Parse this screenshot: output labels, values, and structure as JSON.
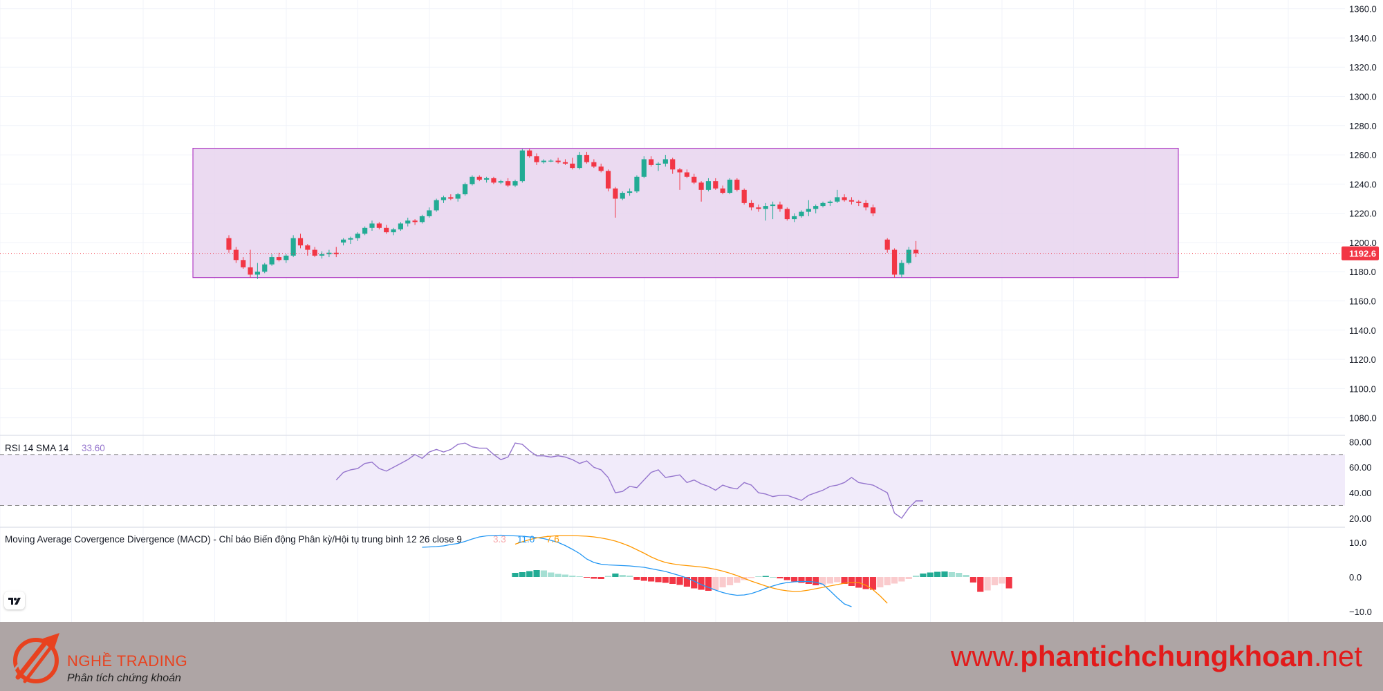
{
  "chart_data": [
    {
      "type": "candlestick",
      "ylim": [
        1068,
        1366
      ],
      "yticks": [
        "1360.0",
        "1340.0",
        "1320.0",
        "1300.0",
        "1280.0",
        "1260.0",
        "1240.0",
        "1220.0",
        "1200.0",
        "1180.0",
        "1160.0",
        "1140.0",
        "1120.0",
        "1100.0",
        "1080.0"
      ],
      "last_price_label": "1192.6",
      "last_price": 1192.6,
      "range_box": {
        "low": 1176,
        "high": 1264.5
      },
      "colors": {
        "up": "#22ab94",
        "down": "#f23645",
        "box_fill": "#e8d3ee",
        "box_stroke": "#b03ec4",
        "price_line": "#f23645"
      },
      "candles": [
        [
          1203,
          1205,
          1193,
          1195
        ],
        [
          1195,
          1197,
          1186,
          1188
        ],
        [
          1188,
          1190,
          1182,
          1183
        ],
        [
          1183,
          1195,
          1176,
          1178
        ],
        [
          1178,
          1186,
          1175,
          1180
        ],
        [
          1180,
          1186,
          1179,
          1185
        ],
        [
          1185,
          1192,
          1184,
          1190
        ],
        [
          1190,
          1193,
          1187,
          1188
        ],
        [
          1188,
          1192,
          1186,
          1191
        ],
        [
          1191,
          1205,
          1190,
          1203
        ],
        [
          1203,
          1206,
          1196,
          1198
        ],
        [
          1198,
          1199,
          1191,
          1195
        ],
        [
          1195,
          1197,
          1190,
          1191
        ],
        [
          1191,
          1194,
          1189,
          1192
        ],
        [
          1192,
          1195,
          1190,
          1193
        ],
        [
          1193,
          1197,
          1190,
          1192
        ],
        [
          1200,
          1203,
          1198,
          1202
        ],
        [
          1202,
          1204,
          1199,
          1203
        ],
        [
          1203,
          1207,
          1201,
          1206
        ],
        [
          1206,
          1211,
          1205,
          1210
        ],
        [
          1210,
          1215,
          1208,
          1213
        ],
        [
          1213,
          1214,
          1209,
          1210
        ],
        [
          1210,
          1212,
          1206,
          1207
        ],
        [
          1207,
          1210,
          1205,
          1209
        ],
        [
          1209,
          1214,
          1208,
          1213
        ],
        [
          1213,
          1217,
          1211,
          1215
        ],
        [
          1215,
          1216,
          1212,
          1214
        ],
        [
          1214,
          1219,
          1213,
          1218
        ],
        [
          1218,
          1224,
          1217,
          1222
        ],
        [
          1222,
          1230,
          1221,
          1229
        ],
        [
          1229,
          1232,
          1227,
          1231
        ],
        [
          1231,
          1233,
          1229,
          1230
        ],
        [
          1230,
          1234,
          1228,
          1233
        ],
        [
          1233,
          1241,
          1232,
          1240
        ],
        [
          1240,
          1246,
          1239,
          1245
        ],
        [
          1245,
          1246,
          1242,
          1243
        ],
        [
          1243,
          1245,
          1241,
          1244
        ],
        [
          1244,
          1245,
          1240,
          1241
        ],
        [
          1241,
          1243,
          1240,
          1242
        ],
        [
          1242,
          1244,
          1238,
          1239
        ],
        [
          1239,
          1243,
          1238,
          1242
        ],
        [
          1242,
          1264,
          1241,
          1263
        ],
        [
          1263,
          1264,
          1258,
          1259
        ],
        [
          1259,
          1261,
          1253,
          1255
        ],
        [
          1255,
          1257,
          1254,
          1256
        ],
        [
          1256,
          1257,
          1255,
          1256
        ],
        [
          1256,
          1258,
          1254,
          1255
        ],
        [
          1255,
          1257,
          1253,
          1254
        ],
        [
          1254,
          1258,
          1250,
          1251
        ],
        [
          1251,
          1262,
          1250,
          1260
        ],
        [
          1260,
          1262,
          1254,
          1255
        ],
        [
          1255,
          1257,
          1251,
          1252
        ],
        [
          1252,
          1254,
          1248,
          1249
        ],
        [
          1249,
          1250,
          1235,
          1237
        ],
        [
          1237,
          1238,
          1217,
          1230
        ],
        [
          1230,
          1235,
          1229,
          1234
        ],
        [
          1234,
          1237,
          1232,
          1235
        ],
        [
          1235,
          1246,
          1234,
          1245
        ],
        [
          1245,
          1259,
          1244,
          1257
        ],
        [
          1257,
          1259,
          1252,
          1253
        ],
        [
          1253,
          1255,
          1249,
          1254
        ],
        [
          1254,
          1260,
          1252,
          1257
        ],
        [
          1257,
          1258,
          1247,
          1250
        ],
        [
          1250,
          1251,
          1236,
          1248
        ],
        [
          1248,
          1250,
          1244,
          1245
        ],
        [
          1245,
          1247,
          1240,
          1241
        ],
        [
          1241,
          1242,
          1228,
          1236
        ],
        [
          1236,
          1244,
          1235,
          1242
        ],
        [
          1242,
          1244,
          1236,
          1237
        ],
        [
          1237,
          1239,
          1233,
          1234
        ],
        [
          1234,
          1244,
          1233,
          1243
        ],
        [
          1243,
          1244,
          1235,
          1236
        ],
        [
          1236,
          1237,
          1226,
          1227
        ],
        [
          1227,
          1229,
          1222,
          1224
        ],
        [
          1224,
          1226,
          1221,
          1223
        ],
        [
          1223,
          1227,
          1215,
          1225
        ],
        [
          1225,
          1228,
          1216,
          1226
        ],
        [
          1226,
          1228,
          1221,
          1223
        ],
        [
          1223,
          1224,
          1215,
          1216
        ],
        [
          1216,
          1220,
          1214,
          1218
        ],
        [
          1218,
          1222,
          1217,
          1221
        ],
        [
          1221,
          1229,
          1218,
          1223
        ],
        [
          1223,
          1226,
          1220,
          1225
        ],
        [
          1225,
          1228,
          1224,
          1227
        ],
        [
          1227,
          1229,
          1225,
          1228
        ],
        [
          1228,
          1236,
          1227,
          1231
        ],
        [
          1231,
          1233,
          1228,
          1229
        ],
        [
          1229,
          1231,
          1226,
          1228
        ],
        [
          1228,
          1229,
          1225,
          1227
        ],
        [
          1227,
          1229,
          1222,
          1224
        ],
        [
          1224,
          1226,
          1218,
          1220
        ],
        null,
        [
          1202,
          1203,
          1193,
          1195
        ],
        [
          1195,
          1196,
          1176,
          1178
        ],
        [
          1178,
          1188,
          1176,
          1186
        ],
        [
          1186,
          1197,
          1185,
          1195
        ],
        [
          1195,
          1201,
          1190,
          1192.6
        ]
      ]
    },
    {
      "type": "line",
      "title": "RSI 14 SMA 14",
      "value_label": "33.60",
      "ylim": [
        14,
        84
      ],
      "yticks": [
        "80.00",
        "60.00",
        "40.00",
        "20.00"
      ],
      "band": [
        30,
        70
      ],
      "colors": {
        "line": "#9575cd",
        "band_fill": "#f1ebfa",
        "band_dash": "#888888"
      },
      "x_start": 15,
      "values": [
        50,
        56,
        58,
        59,
        63,
        64,
        59,
        57,
        60,
        63,
        66,
        70,
        67,
        72,
        74,
        72,
        74,
        78,
        79,
        76,
        75,
        75,
        70,
        66,
        68,
        79,
        78,
        73,
        69,
        69,
        68,
        69,
        68,
        66,
        63,
        65,
        60,
        58,
        52,
        40,
        41,
        45,
        44,
        50,
        56,
        58,
        52,
        53,
        54,
        48,
        50,
        47,
        45,
        42,
        46,
        44,
        43,
        48,
        46,
        40,
        39,
        37,
        38,
        38,
        36,
        34,
        38,
        40,
        42,
        45,
        46,
        48,
        52,
        48,
        47,
        46,
        43,
        40,
        24,
        20,
        28,
        33.6,
        33.6
      ]
    },
    {
      "type": "histogram_lines",
      "title": "Moving Average Covergence Divergence (MACD) - Chỉ báo Biến động Phân kỳ/Hội tụ trung bình 12 26 close 9",
      "values_labels": [
        "3.3",
        "11.0",
        "7.6"
      ],
      "ylim": [
        -12,
        14
      ],
      "yticks": [
        "10.0",
        "0.0",
        "−10.0"
      ],
      "colors": {
        "macd": "#2196f3",
        "signal": "#ff9800",
        "hist_up_strong": "#22ab94",
        "hist_up_weak": "#a5dfd3",
        "hist_down_strong": "#f23645",
        "hist_down_weak": "#facbcd"
      },
      "macd_start": 27,
      "macd": [
        8.6,
        8.7,
        8.8,
        9.0,
        9.4,
        9.7,
        10.3,
        11.0,
        11.6,
        11.9,
        12.0,
        12.1,
        12.0,
        11.9,
        11.8,
        11.6,
        11.4,
        11.1,
        10.6,
        10.0,
        9.1,
        8.0,
        6.8,
        5.2,
        4.2,
        3.7,
        3.5,
        3.4,
        3.3,
        3.2,
        3.0,
        2.8,
        2.4,
        2.0,
        1.6,
        1.0,
        0.4,
        -0.3,
        -1.2,
        -2.2,
        -3.0,
        -3.8,
        -4.5,
        -5.0,
        -5.3,
        -5.2,
        -4.8,
        -4.1,
        -3.3,
        -2.6,
        -2.0,
        -1.6,
        -1.4,
        -1.3,
        -1.3,
        -1.5,
        -2.1,
        -4.0,
        -6.0,
        -7.8,
        -8.6
      ],
      "signal_start": 40,
      "signal": [
        9.5,
        10.2,
        10.8,
        11.3,
        11.6,
        11.8,
        12.0,
        12.0,
        12.0,
        11.9,
        11.8,
        11.6,
        11.3,
        10.9,
        10.4,
        9.7,
        8.9,
        7.9,
        6.9,
        5.8,
        4.9,
        4.2,
        3.8,
        3.5,
        3.3,
        3.1,
        2.9,
        2.6,
        2.2,
        1.7,
        1.1,
        0.4,
        -0.4,
        -1.2,
        -1.9,
        -2.6,
        -3.2,
        -3.7,
        -4.0,
        -4.2,
        -4.1,
        -3.8,
        -3.4,
        -3.0,
        -2.6,
        -2.2,
        -1.8,
        -1.6,
        -1.6,
        -2.4,
        -3.7,
        -5.5,
        -7.6
      ],
      "hist_start": 40,
      "hist": [
        1.2,
        1.4,
        1.7,
        2.0,
        1.9,
        1.3,
        0.9,
        0.7,
        0.4,
        0.2,
        -0.2,
        -0.5,
        -0.6,
        0.3,
        1.0,
        0.6,
        0.4,
        -0.8,
        -1.1,
        -1.3,
        -1.5,
        -1.7,
        -2.0,
        -2.3,
        -2.8,
        -3.3,
        -3.7,
        -4.0,
        -3.8,
        -3.0,
        -2.4,
        -1.7,
        -0.9,
        -0.3,
        0.2,
        0.3,
        0.0,
        -0.4,
        -0.9,
        -1.3,
        -1.7,
        -2.0,
        -2.4,
        -2.3,
        -1.9,
        -1.5,
        -2.0,
        -2.6,
        -3.1,
        -3.5,
        -3.7,
        -3.0,
        -2.4,
        -1.9,
        -1.3,
        -0.6,
        0.4,
        1.0,
        1.3,
        1.5,
        1.6,
        1.4,
        1.2,
        0.6,
        -1.6,
        -4.3,
        -3.9,
        -2.4,
        -1.9,
        -3.3
      ]
    }
  ],
  "footer": {
    "brand": "NGHỀ TRADING",
    "tagline": "Phân tích chứng khoán",
    "site_prefix": "www.",
    "site_main": "phantichchungkhoan",
    "site_suffix": ".net"
  },
  "colors": {
    "footer_bg": "#aea5a5",
    "brand_orange": "#e8421f",
    "site_red": "#e21b1b"
  },
  "icons": {
    "tradingview_logo": "tradingview-logo-icon",
    "brand_logo": "nghe-trading-logo-icon"
  }
}
